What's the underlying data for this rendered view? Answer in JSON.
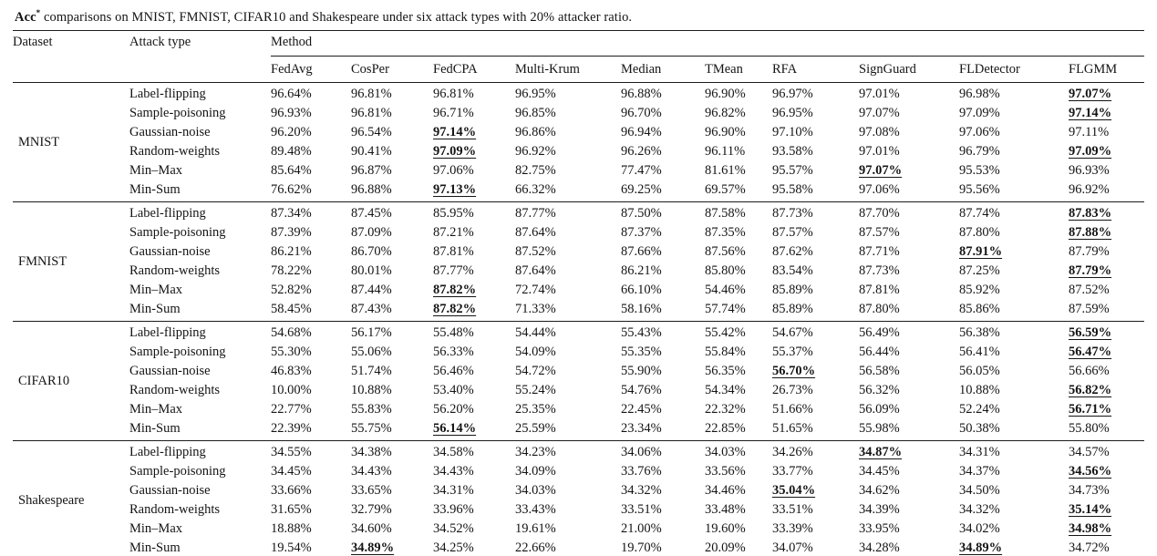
{
  "caption": {
    "word": "Acc",
    "sup": "*",
    "rest": " comparisons on MNIST, FMNIST, CIFAR10 and Shakespeare under six attack types with 20% attacker ratio."
  },
  "table": {
    "headers": {
      "dataset": "Dataset",
      "attack_type": "Attack type",
      "method": "Method"
    },
    "methods": [
      "FedAvg",
      "CosPer",
      "FedCPA",
      "Multi-Krum",
      "Median",
      "TMean",
      "RFA",
      "SignGuard",
      "FLDetector",
      "FLGMM"
    ],
    "groups": [
      {
        "dataset": "MNIST",
        "rows": [
          {
            "attack": "Label-flipping",
            "values": [
              "96.64%",
              "96.81%",
              "96.81%",
              "96.95%",
              "96.88%",
              "96.90%",
              "96.97%",
              "97.01%",
              "96.98%",
              "97.07%"
            ],
            "best": [
              9
            ]
          },
          {
            "attack": "Sample-poisoning",
            "values": [
              "96.93%",
              "96.81%",
              "96.71%",
              "96.85%",
              "96.70%",
              "96.82%",
              "96.95%",
              "97.07%",
              "97.09%",
              "97.14%"
            ],
            "best": [
              9
            ]
          },
          {
            "attack": "Gaussian-noise",
            "values": [
              "96.20%",
              "96.54%",
              "97.14%",
              "96.86%",
              "96.94%",
              "96.90%",
              "97.10%",
              "97.08%",
              "97.06%",
              "97.11%"
            ],
            "best": [
              2
            ]
          },
          {
            "attack": "Random-weights",
            "values": [
              "89.48%",
              "90.41%",
              "97.09%",
              "96.92%",
              "96.26%",
              "96.11%",
              "93.58%",
              "97.01%",
              "96.79%",
              "97.09%"
            ],
            "best": [
              2,
              9
            ]
          },
          {
            "attack": "Min–Max",
            "values": [
              "85.64%",
              "96.87%",
              "97.06%",
              "82.75%",
              "77.47%",
              "81.61%",
              "95.57%",
              "97.07%",
              "95.53%",
              "96.93%"
            ],
            "best": [
              7
            ]
          },
          {
            "attack": "Min-Sum",
            "values": [
              "76.62%",
              "96.88%",
              "97.13%",
              "66.32%",
              "69.25%",
              "69.57%",
              "95.58%",
              "97.06%",
              "95.56%",
              "96.92%"
            ],
            "best": [
              2
            ]
          }
        ]
      },
      {
        "dataset": "FMNIST",
        "rows": [
          {
            "attack": "Label-flipping",
            "values": [
              "87.34%",
              "87.45%",
              "85.95%",
              "87.77%",
              "87.50%",
              "87.58%",
              "87.73%",
              "87.70%",
              "87.74%",
              "87.83%"
            ],
            "best": [
              9
            ]
          },
          {
            "attack": "Sample-poisoning",
            "values": [
              "87.39%",
              "87.09%",
              "87.21%",
              "87.64%",
              "87.37%",
              "87.35%",
              "87.57%",
              "87.57%",
              "87.80%",
              "87.88%"
            ],
            "best": [
              9
            ]
          },
          {
            "attack": "Gaussian-noise",
            "values": [
              "86.21%",
              "86.70%",
              "87.81%",
              "87.52%",
              "87.66%",
              "87.56%",
              "87.62%",
              "87.71%",
              "87.91%",
              "87.79%"
            ],
            "best": [
              8
            ]
          },
          {
            "attack": "Random-weights",
            "values": [
              "78.22%",
              "80.01%",
              "87.77%",
              "87.64%",
              "86.21%",
              "85.80%",
              "83.54%",
              "87.73%",
              "87.25%",
              "87.79%"
            ],
            "best": [
              9
            ]
          },
          {
            "attack": "Min–Max",
            "values": [
              "52.82%",
              "87.44%",
              "87.82%",
              "72.74%",
              "66.10%",
              "54.46%",
              "85.89%",
              "87.81%",
              "85.92%",
              "87.52%"
            ],
            "best": [
              2
            ]
          },
          {
            "attack": "Min-Sum",
            "values": [
              "58.45%",
              "87.43%",
              "87.82%",
              "71.33%",
              "58.16%",
              "57.74%",
              "85.89%",
              "87.80%",
              "85.86%",
              "87.59%"
            ],
            "best": [
              2
            ]
          }
        ]
      },
      {
        "dataset": "CIFAR10",
        "rows": [
          {
            "attack": "Label-flipping",
            "values": [
              "54.68%",
              "56.17%",
              "55.48%",
              "54.44%",
              "55.43%",
              "55.42%",
              "54.67%",
              "56.49%",
              "56.38%",
              "56.59%"
            ],
            "best": [
              9
            ]
          },
          {
            "attack": "Sample-poisoning",
            "values": [
              "55.30%",
              "55.06%",
              "56.33%",
              "54.09%",
              "55.35%",
              "55.84%",
              "55.37%",
              "56.44%",
              "56.41%",
              "56.47%"
            ],
            "best": [
              9
            ]
          },
          {
            "attack": "Gaussian-noise",
            "values": [
              "46.83%",
              "51.74%",
              "56.46%",
              "54.72%",
              "55.90%",
              "56.35%",
              "56.70%",
              "56.58%",
              "56.05%",
              "56.66%"
            ],
            "best": [
              6
            ]
          },
          {
            "attack": "Random-weights",
            "values": [
              "10.00%",
              "10.88%",
              "53.40%",
              "55.24%",
              "54.76%",
              "54.34%",
              "26.73%",
              "56.32%",
              "10.88%",
              "56.82%"
            ],
            "best": [
              9
            ]
          },
          {
            "attack": "Min–Max",
            "values": [
              "22.77%",
              "55.83%",
              "56.20%",
              "25.35%",
              "22.45%",
              "22.32%",
              "51.66%",
              "56.09%",
              "52.24%",
              "56.71%"
            ],
            "best": [
              9
            ]
          },
          {
            "attack": "Min-Sum",
            "values": [
              "22.39%",
              "55.75%",
              "56.14%",
              "25.59%",
              "23.34%",
              "22.85%",
              "51.65%",
              "55.98%",
              "50.38%",
              "55.80%"
            ],
            "best": [
              2
            ]
          }
        ]
      },
      {
        "dataset": "Shakespeare",
        "rows": [
          {
            "attack": "Label-flipping",
            "values": [
              "34.55%",
              "34.38%",
              "34.58%",
              "34.23%",
              "34.06%",
              "34.03%",
              "34.26%",
              "34.87%",
              "34.31%",
              "34.57%"
            ],
            "best": [
              7
            ]
          },
          {
            "attack": "Sample-poisoning",
            "values": [
              "34.45%",
              "34.43%",
              "34.43%",
              "34.09%",
              "33.76%",
              "33.56%",
              "33.77%",
              "34.45%",
              "34.37%",
              "34.56%"
            ],
            "best": [
              9
            ]
          },
          {
            "attack": "Gaussian-noise",
            "values": [
              "33.66%",
              "33.65%",
              "34.31%",
              "34.03%",
              "34.32%",
              "34.46%",
              "35.04%",
              "34.62%",
              "34.50%",
              "34.73%"
            ],
            "best": [
              6
            ]
          },
          {
            "attack": "Random-weights",
            "values": [
              "31.65%",
              "32.79%",
              "33.96%",
              "33.43%",
              "33.51%",
              "33.48%",
              "33.51%",
              "34.39%",
              "34.32%",
              "35.14%"
            ],
            "best": [
              9
            ]
          },
          {
            "attack": "Min–Max",
            "values": [
              "18.88%",
              "34.60%",
              "34.52%",
              "19.61%",
              "21.00%",
              "19.60%",
              "33.39%",
              "33.95%",
              "34.02%",
              "34.98%"
            ],
            "best": [
              9
            ]
          },
          {
            "attack": "Min-Sum",
            "values": [
              "19.54%",
              "34.89%",
              "34.25%",
              "22.66%",
              "19.70%",
              "20.09%",
              "34.07%",
              "34.28%",
              "34.89%",
              "34.72%"
            ],
            "best": [
              1,
              8
            ]
          }
        ]
      }
    ]
  }
}
